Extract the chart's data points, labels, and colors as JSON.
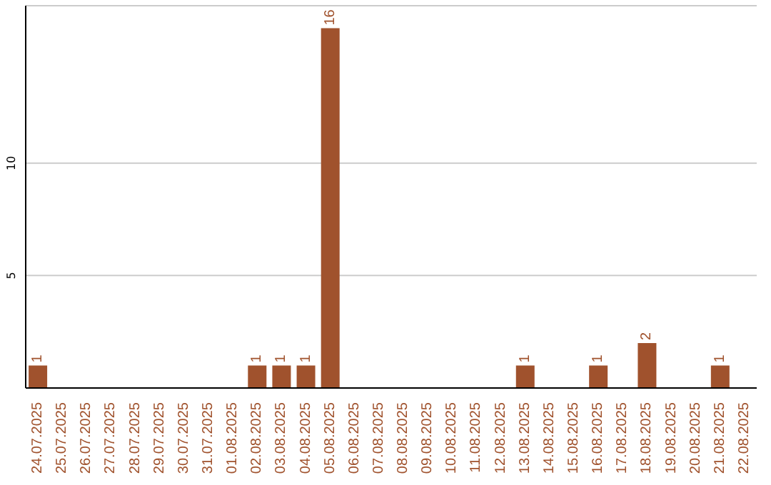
{
  "chart_data": {
    "type": "bar",
    "categories": [
      "24.07.2025",
      "25.07.2025",
      "26.07.2025",
      "27.07.2025",
      "28.07.2025",
      "29.07.2025",
      "30.07.2025",
      "31.07.2025",
      "01.08.2025",
      "02.08.2025",
      "03.08.2025",
      "04.08.2025",
      "05.08.2025",
      "06.08.2025",
      "07.08.2025",
      "08.08.2025",
      "09.08.2025",
      "10.08.2025",
      "11.08.2025",
      "12.08.2025",
      "13.08.2025",
      "14.08.2025",
      "15.08.2025",
      "16.08.2025",
      "17.08.2025",
      "18.08.2025",
      "19.08.2025",
      "20.08.2025",
      "21.08.2025",
      "22.08.2025"
    ],
    "values": [
      1,
      0,
      0,
      0,
      0,
      0,
      0,
      0,
      0,
      1,
      1,
      1,
      16,
      0,
      0,
      0,
      0,
      0,
      0,
      0,
      1,
      0,
      0,
      1,
      0,
      2,
      0,
      0,
      1,
      0
    ],
    "value_labels": [
      "1",
      null,
      null,
      null,
      null,
      null,
      null,
      null,
      null,
      "1",
      "1",
      "1",
      "16",
      null,
      null,
      null,
      null,
      null,
      null,
      null,
      "1",
      null,
      null,
      "1",
      null,
      "2",
      null,
      null,
      "1",
      null
    ],
    "color": "#a0522d",
    "ylim": [
      0,
      17
    ],
    "yticks": [
      5,
      10
    ],
    "grid": "y"
  }
}
